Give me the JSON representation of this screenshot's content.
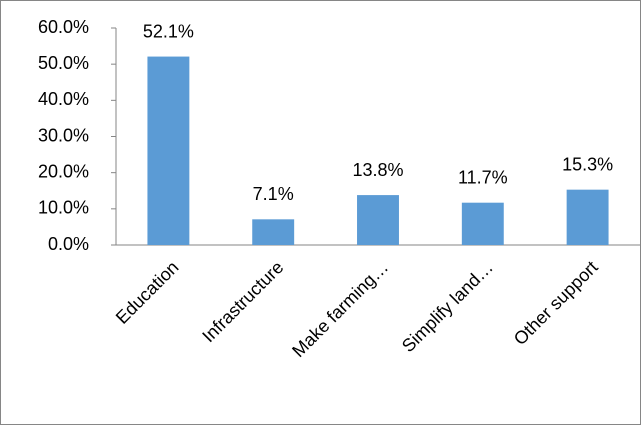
{
  "chart_data": {
    "type": "bar",
    "categories": [
      "Education",
      "Infrastructure",
      "Make farming…",
      "Simplify land…",
      "Other support"
    ],
    "values": [
      52.1,
      7.1,
      13.8,
      11.7,
      15.3
    ],
    "value_labels": [
      "52.1%",
      "7.1%",
      "13.8%",
      "11.7%",
      "15.3%"
    ],
    "color": "#5b9bd5",
    "ylim": [
      0,
      60
    ],
    "yticks": [
      {
        "value": 0,
        "label": "0.0%"
      },
      {
        "value": 10,
        "label": "10.0%"
      },
      {
        "value": 20,
        "label": "20.0%"
      },
      {
        "value": 30,
        "label": "30.0%"
      },
      {
        "value": 40,
        "label": "40.0%"
      },
      {
        "value": 50,
        "label": "50.0%"
      },
      {
        "value": 60,
        "label": "60.0%"
      }
    ],
    "grid": false
  }
}
